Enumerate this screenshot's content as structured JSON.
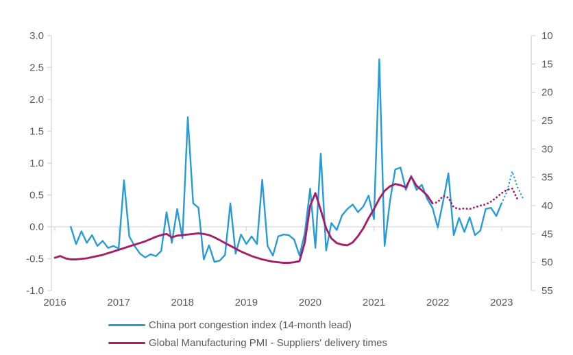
{
  "chart_data": {
    "type": "line",
    "title": "",
    "grid": "zero-line only",
    "legend_position": "bottom-left",
    "x_axis": {
      "unit": "month",
      "range_start": "2016-01",
      "tick_labels": [
        "2016",
        "2017",
        "2018",
        "2019",
        "2020",
        "2021",
        "2022",
        "2023"
      ]
    },
    "left_axis": {
      "min": -1.0,
      "max": 3.0,
      "tick_labels": [
        "3.0",
        "2.5",
        "2.0",
        "1.5",
        "1.0",
        "0.5",
        "0.0",
        "-0.5",
        "-1.0"
      ]
    },
    "right_axis": {
      "min": 10,
      "max": 55,
      "direction": "inverted (10 at top, 55 at bottom)",
      "tick_labels": [
        "10",
        "15",
        "20",
        "25",
        "30",
        "35",
        "40",
        "45",
        "50",
        "55"
      ]
    },
    "series": [
      {
        "name": "China port congestion index (14-month lead)",
        "color": "#279BD5",
        "axis": "left",
        "style": "solid line with dotted forecast tail",
        "start_month": "2016-04",
        "solid_values": [
          0.0,
          -0.27,
          -0.07,
          -0.25,
          -0.13,
          -0.3,
          -0.22,
          -0.33,
          -0.3,
          -0.34,
          0.73,
          -0.15,
          -0.3,
          -0.42,
          -0.48,
          -0.43,
          -0.46,
          -0.38,
          0.23,
          -0.25,
          0.28,
          -0.18,
          1.72,
          0.37,
          0.3,
          -0.51,
          -0.29,
          -0.55,
          -0.53,
          -0.44,
          0.37,
          -0.42,
          -0.12,
          -0.27,
          -0.15,
          -0.27,
          0.74,
          -0.3,
          -0.45,
          -0.15,
          -0.12,
          -0.13,
          -0.2,
          -0.45,
          -0.1,
          0.6,
          -0.33,
          1.15,
          -0.37,
          0.06,
          -0.05,
          0.18,
          0.28,
          0.35,
          0.23,
          0.32,
          0.49,
          0.12,
          2.63,
          -0.3,
          0.4,
          0.9,
          0.93,
          0.58,
          0.8,
          0.58,
          0.66,
          0.44,
          0.3,
          -0.01,
          0.4,
          0.84,
          -0.13,
          0.14,
          -0.08,
          0.15,
          -0.13,
          -0.06,
          0.28,
          0.3,
          0.17,
          0.37
        ],
        "dotted_start_month": "2023-02",
        "dotted_values": [
          0.55,
          0.87,
          0.62,
          0.45
        ]
      },
      {
        "name": "Global Manufacturing PMI - Suppliers' delivery times",
        "color": "#A41E68",
        "axis": "right",
        "style": "solid line with dotted forecast tail",
        "start_month": "2016-01",
        "solid_values": [
          49.2,
          48.9,
          49.3,
          49.5,
          49.5,
          49.4,
          49.3,
          49.1,
          48.9,
          48.7,
          48.4,
          48.1,
          47.8,
          47.5,
          47.2,
          46.9,
          46.6,
          46.3,
          45.9,
          45.5,
          45.2,
          45.0,
          45.6,
          45.3,
          45.2,
          45.1,
          45.0,
          44.9,
          45.0,
          45.2,
          45.6,
          46.1,
          46.6,
          47.1,
          47.6,
          48.1,
          48.5,
          48.9,
          49.2,
          49.5,
          49.7,
          49.9,
          50.0,
          50.1,
          50.1,
          50.0,
          49.8,
          46.5,
          40.0,
          37.8,
          40.8,
          44.0,
          45.8,
          46.6,
          46.9,
          47.0,
          46.5,
          45.4,
          44.0,
          42.2,
          40.6,
          38.8,
          37.4,
          36.6,
          36.2,
          36.4,
          36.8,
          34.9,
          36.5,
          37.3,
          38.2,
          39.6
        ],
        "dotted_start_month": "2022-01",
        "dotted_values": [
          39.4,
          38.3,
          38.6,
          40.3,
          40.6,
          40.5,
          40.6,
          40.3,
          40.0,
          39.8,
          39.3,
          38.6,
          37.8,
          37.2,
          37.0,
          38.9
        ]
      }
    ]
  }
}
